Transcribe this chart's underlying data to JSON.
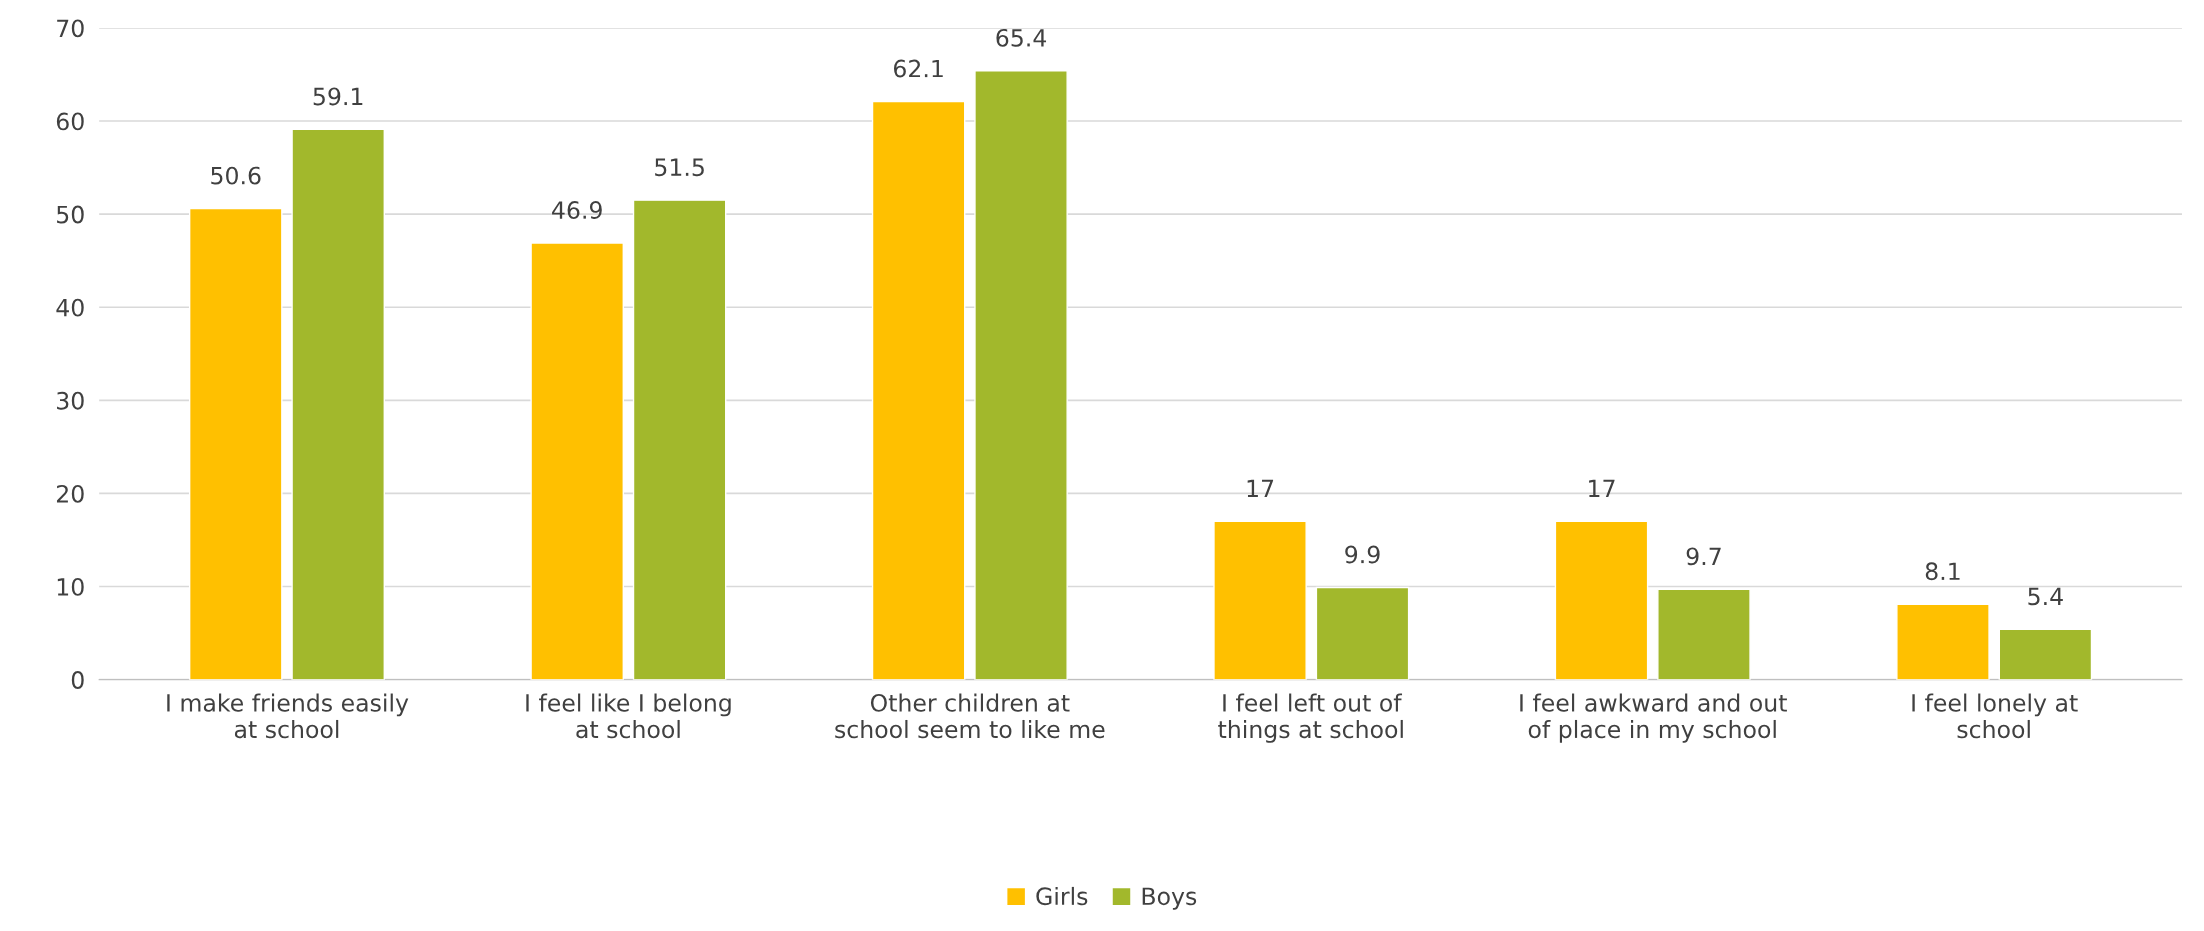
{
  "chart_data": {
    "type": "bar",
    "categories": [
      "I make friends easily at school",
      "I feel like I belong at school",
      "Other children at school seem to like me",
      "I feel left out of things at school",
      "I feel awkward and out of place in my school",
      "I feel lonely at school"
    ],
    "series": [
      {
        "name": "Girls",
        "color": "#ffc000",
        "values": [
          50.6,
          46.9,
          62.1,
          17,
          17,
          8.1
        ]
      },
      {
        "name": "Boys",
        "color": "#a2b82c",
        "values": [
          59.1,
          51.5,
          65.4,
          9.9,
          9.7,
          5.4
        ]
      }
    ],
    "ylim": [
      0,
      70
    ],
    "yticks": [
      0,
      10,
      20,
      30,
      40,
      50,
      60,
      70
    ],
    "grid": "y",
    "legend": "bottom",
    "data_labels": true
  }
}
